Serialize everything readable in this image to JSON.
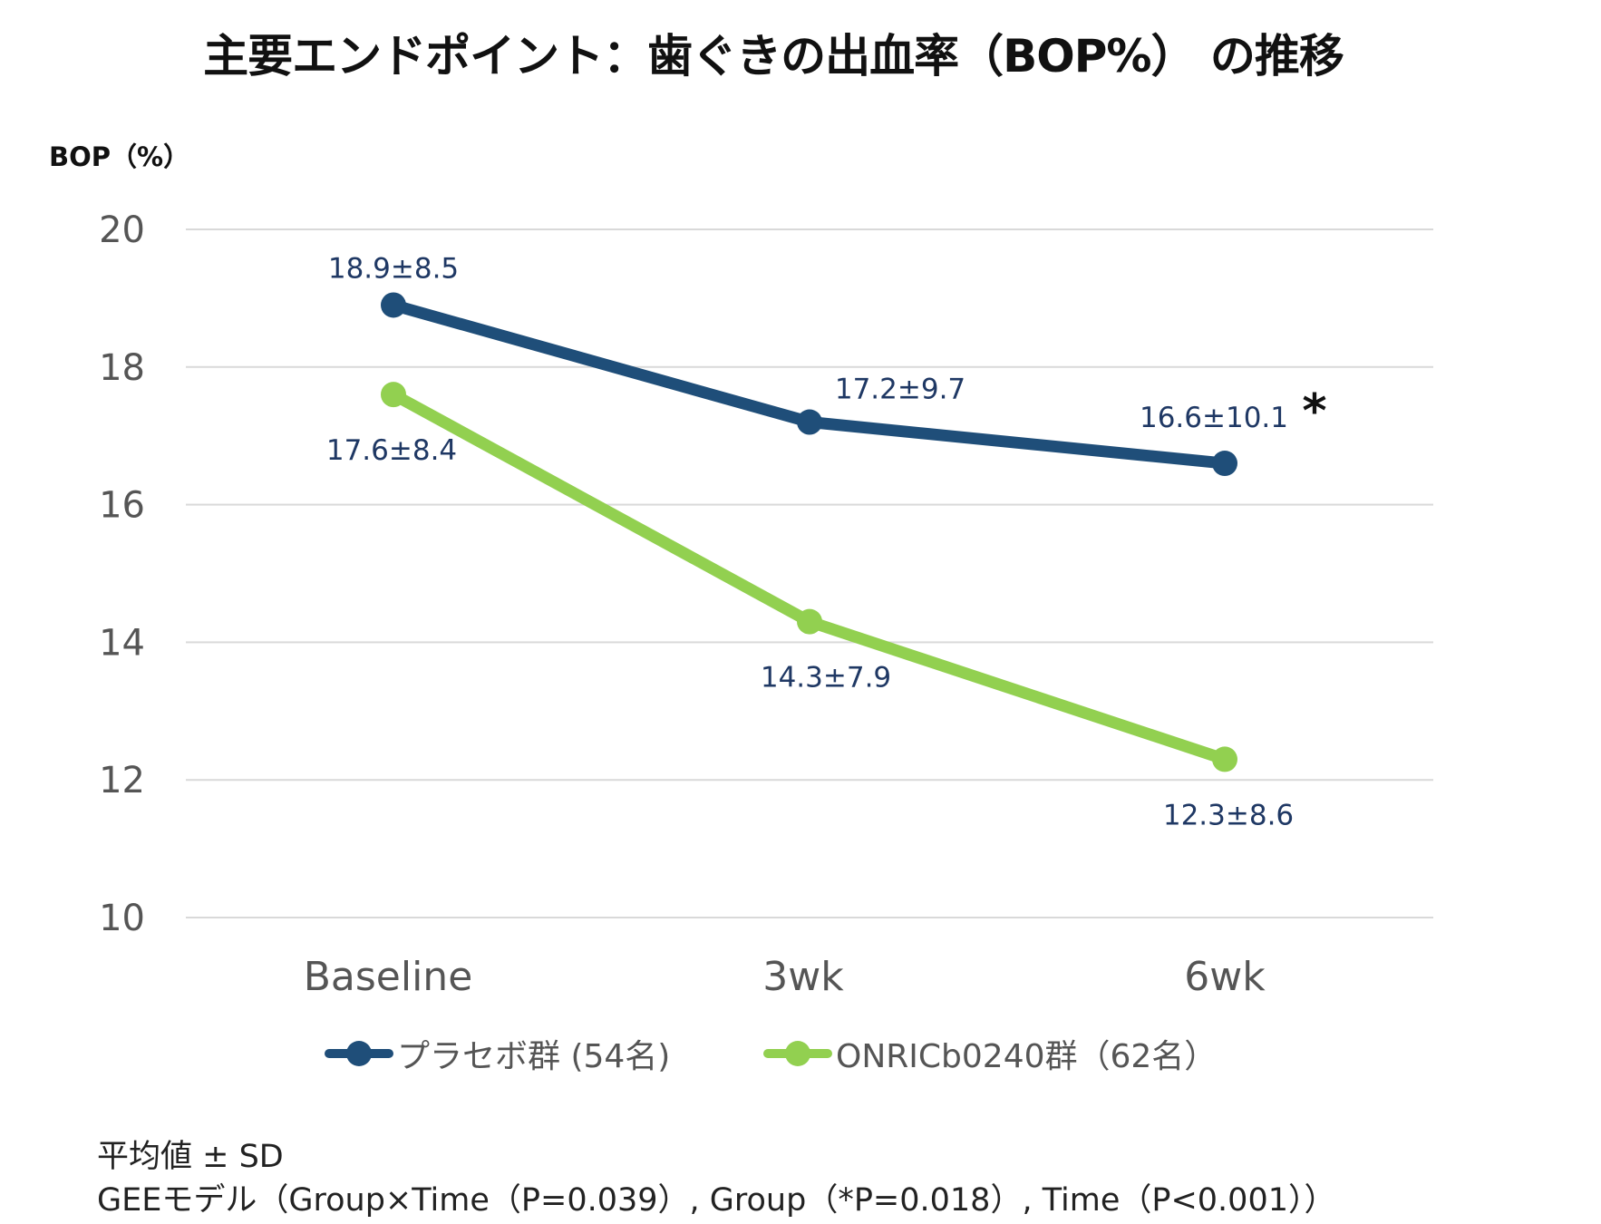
{
  "title": "主要エンドポイント：歯ぐきの出血率（BOP%） の推移",
  "chart_data": {
    "type": "line",
    "title": "主要エンドポイント：歯ぐきの出血率（BOP%） の推移",
    "ylabel": "BOP（%）",
    "xlabel": "",
    "categories": [
      "Baseline",
      "3wk",
      "6wk"
    ],
    "ylim": [
      10,
      20
    ],
    "yticks": [
      10,
      12,
      14,
      16,
      18,
      20
    ],
    "grid": true,
    "legend_position": "bottom",
    "series": [
      {
        "name": "プラセボ群 (54名)",
        "color": "#1f4e79",
        "values": [
          18.9,
          17.2,
          16.6
        ],
        "labels": [
          "18.9±8.5",
          "17.2±9.7",
          "16.6±10.1"
        ]
      },
      {
        "name": "ONRICb0240群（62名）",
        "color": "#92d050",
        "values": [
          17.6,
          14.3,
          12.3
        ],
        "labels": [
          "17.6±8.4",
          "14.3±7.9",
          "12.3±8.6"
        ]
      }
    ],
    "annotation": "*"
  },
  "footer": {
    "line1": "平均値 ± SD",
    "line2": "GEEモデル（Group×Time（P=0.039）, Group（*P=0.018）, Time（P<0.001））"
  }
}
